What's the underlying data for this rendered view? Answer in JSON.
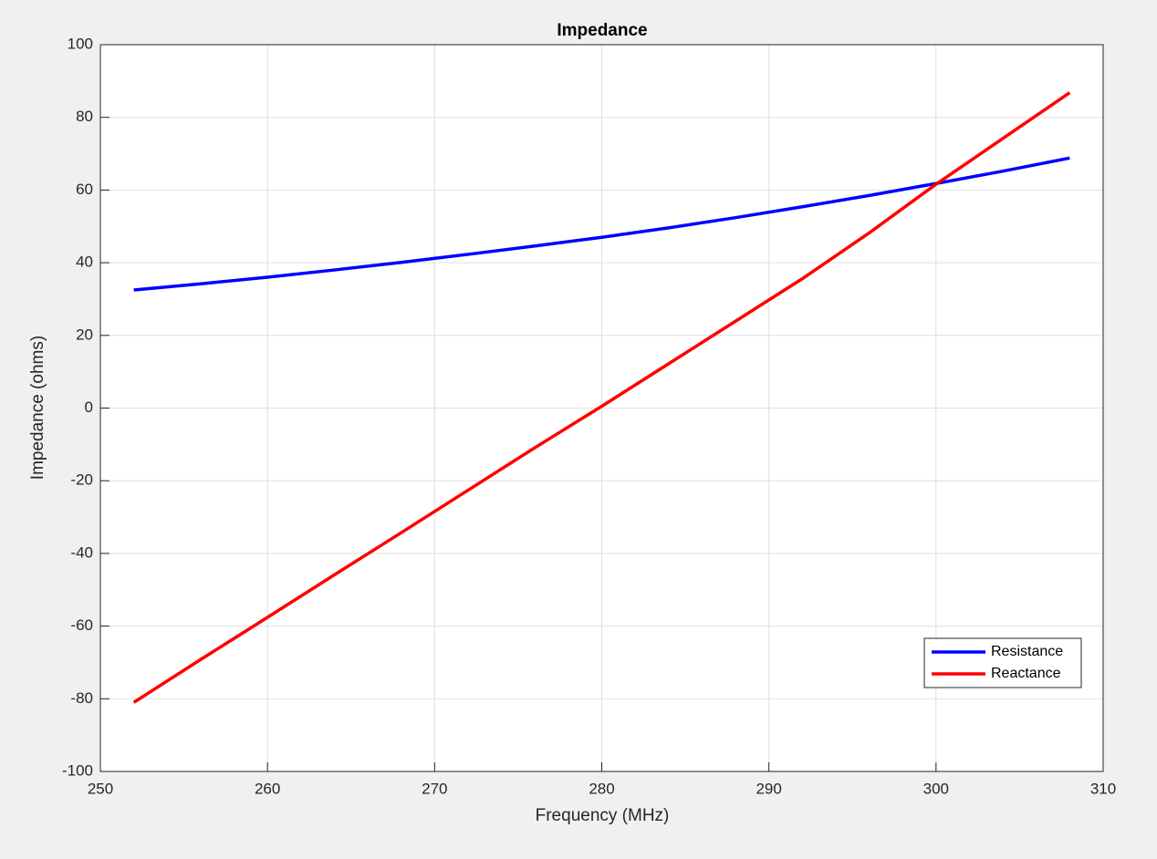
{
  "chart_data": {
    "type": "line",
    "title": "Impedance",
    "xlabel": "Frequency (MHz)",
    "ylabel": "Impedance (ohms)",
    "x": [
      252,
      256,
      260,
      264,
      268,
      272,
      276,
      280,
      284,
      288,
      292,
      296,
      300,
      304,
      308
    ],
    "series": [
      {
        "name": "Resistance",
        "color": "#0000ff",
        "values": [
          32.5,
          34.2,
          36.0,
          38.0,
          40.1,
          42.3,
          44.6,
          47.0,
          49.6,
          52.4,
          55.4,
          58.5,
          61.8,
          65.2,
          68.8
        ]
      },
      {
        "name": "Reactance",
        "color": "#ff0000",
        "values": [
          -81,
          -69.2,
          -57.6,
          -45.9,
          -34.3,
          -22.6,
          -10.9,
          0.5,
          12.2,
          23.9,
          35.6,
          48.2,
          61.6,
          74.2,
          86.8
        ]
      }
    ],
    "xlim": [
      250,
      310
    ],
    "xticks": [
      250,
      260,
      270,
      280,
      290,
      300,
      310
    ],
    "ylim": [
      -100,
      100
    ],
    "yticks": [
      -100,
      -80,
      -60,
      -40,
      -20,
      0,
      20,
      40,
      60,
      80,
      100
    ],
    "grid": true,
    "legend": "southeast"
  }
}
